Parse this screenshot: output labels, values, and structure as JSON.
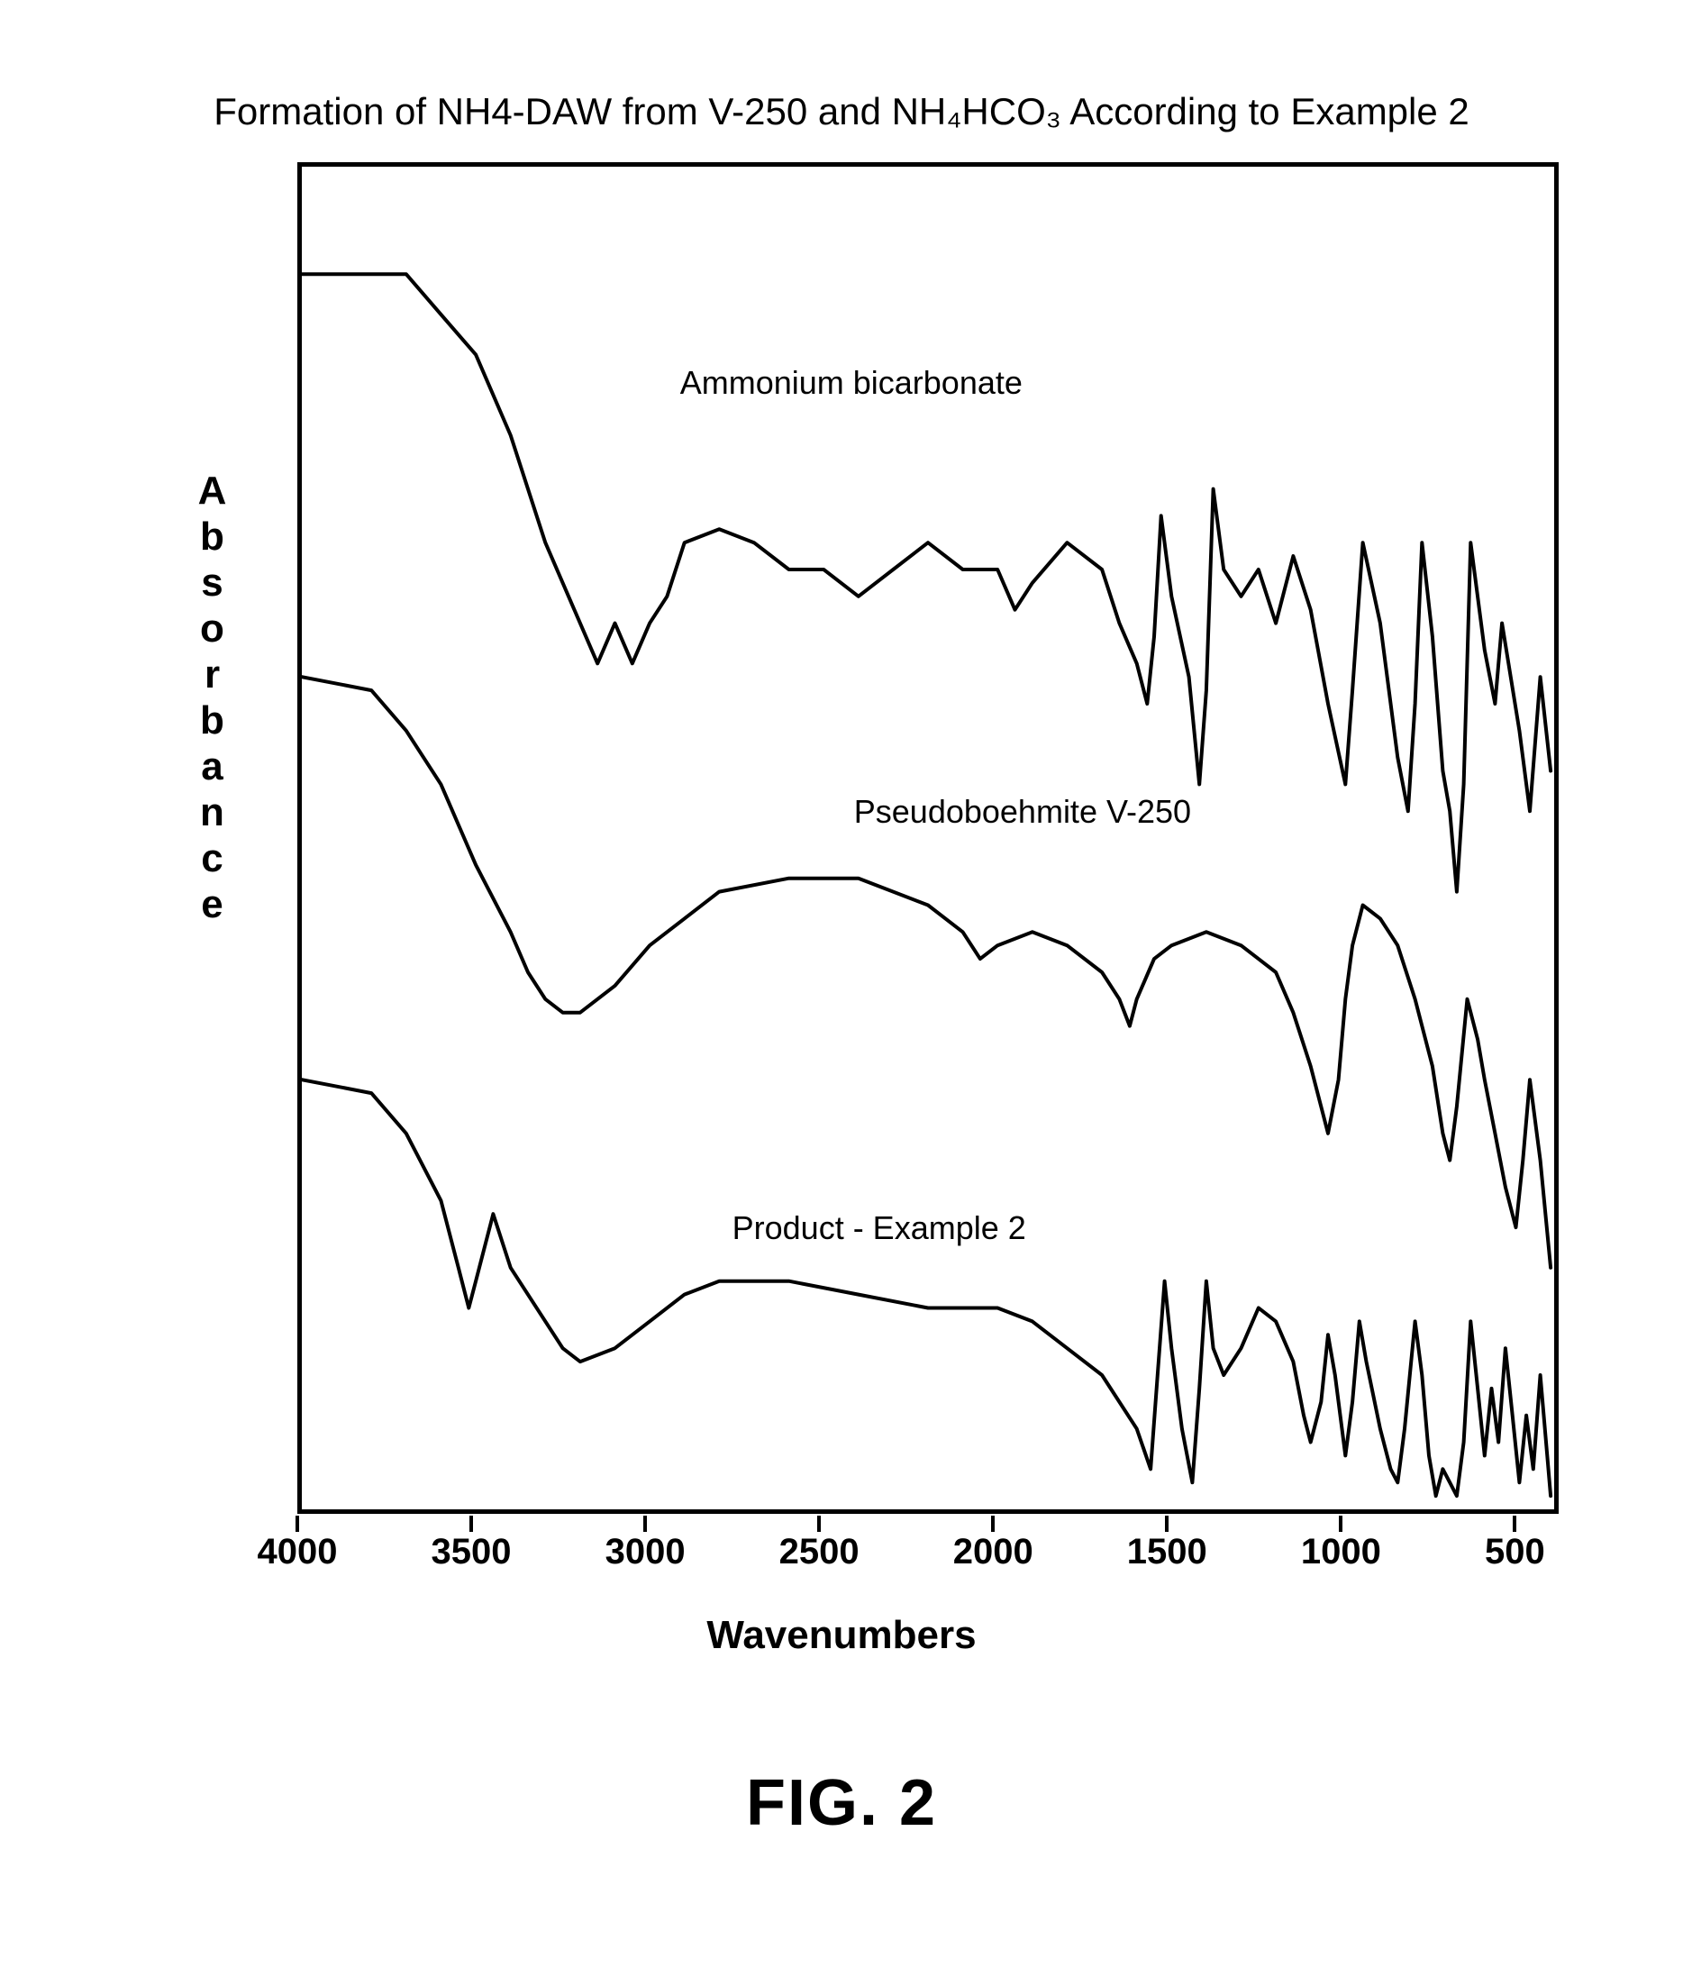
{
  "figure": {
    "caption": "FIG. 2",
    "caption_fontsize": 72
  },
  "chart": {
    "type": "line",
    "title": "Formation of NH4-DAW from V-250 and NH₄HCO₃ According to Example 2",
    "title_fontsize": 42,
    "xlabel": "Wavenumbers",
    "ylabel": "Absorbance",
    "label_fontsize": 44,
    "xlim": [
      4000,
      400
    ],
    "x_reversed": true,
    "xticks": [
      4000,
      3500,
      3000,
      2500,
      2000,
      1500,
      1000,
      500
    ],
    "xtick_fontsize": 40,
    "background_color": "#ffffff",
    "border_color": "#000000",
    "line_color": "#000000",
    "line_width": 4,
    "series": [
      {
        "name": "Ammonium bicarbonate",
        "label": "Ammonium bicarbonate",
        "y_offset": 0.78,
        "label_pos": {
          "x_wavenumber": 2900,
          "y_rel": 0.85
        },
        "points": [
          [
            4000,
            0.92
          ],
          [
            3700,
            0.92
          ],
          [
            3600,
            0.89
          ],
          [
            3500,
            0.86
          ],
          [
            3400,
            0.8
          ],
          [
            3300,
            0.72
          ],
          [
            3200,
            0.66
          ],
          [
            3150,
            0.63
          ],
          [
            3100,
            0.66
          ],
          [
            3050,
            0.63
          ],
          [
            3000,
            0.66
          ],
          [
            2950,
            0.68
          ],
          [
            2900,
            0.72
          ],
          [
            2800,
            0.73
          ],
          [
            2700,
            0.72
          ],
          [
            2600,
            0.7
          ],
          [
            2500,
            0.7
          ],
          [
            2400,
            0.68
          ],
          [
            2300,
            0.7
          ],
          [
            2200,
            0.72
          ],
          [
            2100,
            0.7
          ],
          [
            2000,
            0.7
          ],
          [
            1950,
            0.67
          ],
          [
            1900,
            0.69
          ],
          [
            1800,
            0.72
          ],
          [
            1700,
            0.7
          ],
          [
            1650,
            0.66
          ],
          [
            1600,
            0.63
          ],
          [
            1570,
            0.6
          ],
          [
            1550,
            0.65
          ],
          [
            1530,
            0.74
          ],
          [
            1500,
            0.68
          ],
          [
            1450,
            0.62
          ],
          [
            1420,
            0.54
          ],
          [
            1400,
            0.61
          ],
          [
            1380,
            0.76
          ],
          [
            1350,
            0.7
          ],
          [
            1300,
            0.68
          ],
          [
            1250,
            0.7
          ],
          [
            1200,
            0.66
          ],
          [
            1150,
            0.71
          ],
          [
            1100,
            0.67
          ],
          [
            1050,
            0.6
          ],
          [
            1000,
            0.54
          ],
          [
            980,
            0.61
          ],
          [
            950,
            0.72
          ],
          [
            900,
            0.66
          ],
          [
            850,
            0.56
          ],
          [
            820,
            0.52
          ],
          [
            800,
            0.6
          ],
          [
            780,
            0.72
          ],
          [
            750,
            0.65
          ],
          [
            720,
            0.55
          ],
          [
            700,
            0.52
          ],
          [
            680,
            0.46
          ],
          [
            660,
            0.54
          ],
          [
            640,
            0.72
          ],
          [
            600,
            0.64
          ],
          [
            570,
            0.6
          ],
          [
            550,
            0.66
          ],
          [
            500,
            0.58
          ],
          [
            470,
            0.52
          ],
          [
            440,
            0.62
          ],
          [
            410,
            0.55
          ]
        ]
      },
      {
        "name": "Pseudoboehmite V-250",
        "label": "Pseudoboehmite V-250",
        "y_offset": 0.45,
        "label_pos": {
          "x_wavenumber": 2400,
          "y_rel": 0.53
        },
        "points": [
          [
            4000,
            0.62
          ],
          [
            3800,
            0.61
          ],
          [
            3700,
            0.58
          ],
          [
            3600,
            0.54
          ],
          [
            3500,
            0.48
          ],
          [
            3400,
            0.43
          ],
          [
            3350,
            0.4
          ],
          [
            3300,
            0.38
          ],
          [
            3250,
            0.37
          ],
          [
            3200,
            0.37
          ],
          [
            3100,
            0.39
          ],
          [
            3000,
            0.42
          ],
          [
            2900,
            0.44
          ],
          [
            2800,
            0.46
          ],
          [
            2600,
            0.47
          ],
          [
            2400,
            0.47
          ],
          [
            2200,
            0.45
          ],
          [
            2100,
            0.43
          ],
          [
            2050,
            0.41
          ],
          [
            2000,
            0.42
          ],
          [
            1900,
            0.43
          ],
          [
            1800,
            0.42
          ],
          [
            1700,
            0.4
          ],
          [
            1650,
            0.38
          ],
          [
            1620,
            0.36
          ],
          [
            1600,
            0.38
          ],
          [
            1550,
            0.41
          ],
          [
            1500,
            0.42
          ],
          [
            1400,
            0.43
          ],
          [
            1300,
            0.42
          ],
          [
            1200,
            0.4
          ],
          [
            1150,
            0.37
          ],
          [
            1100,
            0.33
          ],
          [
            1070,
            0.3
          ],
          [
            1050,
            0.28
          ],
          [
            1020,
            0.32
          ],
          [
            1000,
            0.38
          ],
          [
            980,
            0.42
          ],
          [
            950,
            0.45
          ],
          [
            900,
            0.44
          ],
          [
            850,
            0.42
          ],
          [
            800,
            0.38
          ],
          [
            750,
            0.33
          ],
          [
            720,
            0.28
          ],
          [
            700,
            0.26
          ],
          [
            680,
            0.3
          ],
          [
            650,
            0.38
          ],
          [
            620,
            0.35
          ],
          [
            600,
            0.32
          ],
          [
            570,
            0.28
          ],
          [
            540,
            0.24
          ],
          [
            510,
            0.21
          ],
          [
            490,
            0.26
          ],
          [
            470,
            0.32
          ],
          [
            440,
            0.26
          ],
          [
            410,
            0.18
          ]
        ]
      },
      {
        "name": "Product - Example 2",
        "label": "Product - Example 2",
        "y_offset": 0.12,
        "label_pos": {
          "x_wavenumber": 2750,
          "y_rel": 0.22
        },
        "points": [
          [
            4000,
            0.32
          ],
          [
            3800,
            0.31
          ],
          [
            3700,
            0.28
          ],
          [
            3600,
            0.23
          ],
          [
            3550,
            0.18
          ],
          [
            3520,
            0.15
          ],
          [
            3500,
            0.17
          ],
          [
            3450,
            0.22
          ],
          [
            3400,
            0.18
          ],
          [
            3300,
            0.14
          ],
          [
            3250,
            0.12
          ],
          [
            3200,
            0.11
          ],
          [
            3100,
            0.12
          ],
          [
            3000,
            0.14
          ],
          [
            2900,
            0.16
          ],
          [
            2800,
            0.17
          ],
          [
            2600,
            0.17
          ],
          [
            2400,
            0.16
          ],
          [
            2200,
            0.15
          ],
          [
            2000,
            0.15
          ],
          [
            1900,
            0.14
          ],
          [
            1800,
            0.12
          ],
          [
            1700,
            0.1
          ],
          [
            1600,
            0.06
          ],
          [
            1560,
            0.03
          ],
          [
            1540,
            0.1
          ],
          [
            1520,
            0.17
          ],
          [
            1500,
            0.12
          ],
          [
            1470,
            0.06
          ],
          [
            1440,
            0.02
          ],
          [
            1420,
            0.09
          ],
          [
            1400,
            0.17
          ],
          [
            1380,
            0.12
          ],
          [
            1350,
            0.1
          ],
          [
            1300,
            0.12
          ],
          [
            1250,
            0.15
          ],
          [
            1200,
            0.14
          ],
          [
            1150,
            0.11
          ],
          [
            1120,
            0.07
          ],
          [
            1100,
            0.05
          ],
          [
            1070,
            0.08
          ],
          [
            1050,
            0.13
          ],
          [
            1030,
            0.1
          ],
          [
            1000,
            0.04
          ],
          [
            980,
            0.08
          ],
          [
            960,
            0.14
          ],
          [
            940,
            0.11
          ],
          [
            900,
            0.06
          ],
          [
            870,
            0.03
          ],
          [
            850,
            0.02
          ],
          [
            830,
            0.06
          ],
          [
            800,
            0.14
          ],
          [
            780,
            0.1
          ],
          [
            760,
            0.04
          ],
          [
            740,
            0.01
          ],
          [
            720,
            0.03
          ],
          [
            700,
            0.02
          ],
          [
            680,
            0.01
          ],
          [
            660,
            0.05
          ],
          [
            640,
            0.14
          ],
          [
            620,
            0.09
          ],
          [
            600,
            0.04
          ],
          [
            580,
            0.09
          ],
          [
            560,
            0.05
          ],
          [
            540,
            0.12
          ],
          [
            520,
            0.07
          ],
          [
            500,
            0.02
          ],
          [
            480,
            0.07
          ],
          [
            460,
            0.03
          ],
          [
            440,
            0.1
          ],
          [
            420,
            0.04
          ],
          [
            410,
            0.01
          ]
        ]
      }
    ]
  }
}
